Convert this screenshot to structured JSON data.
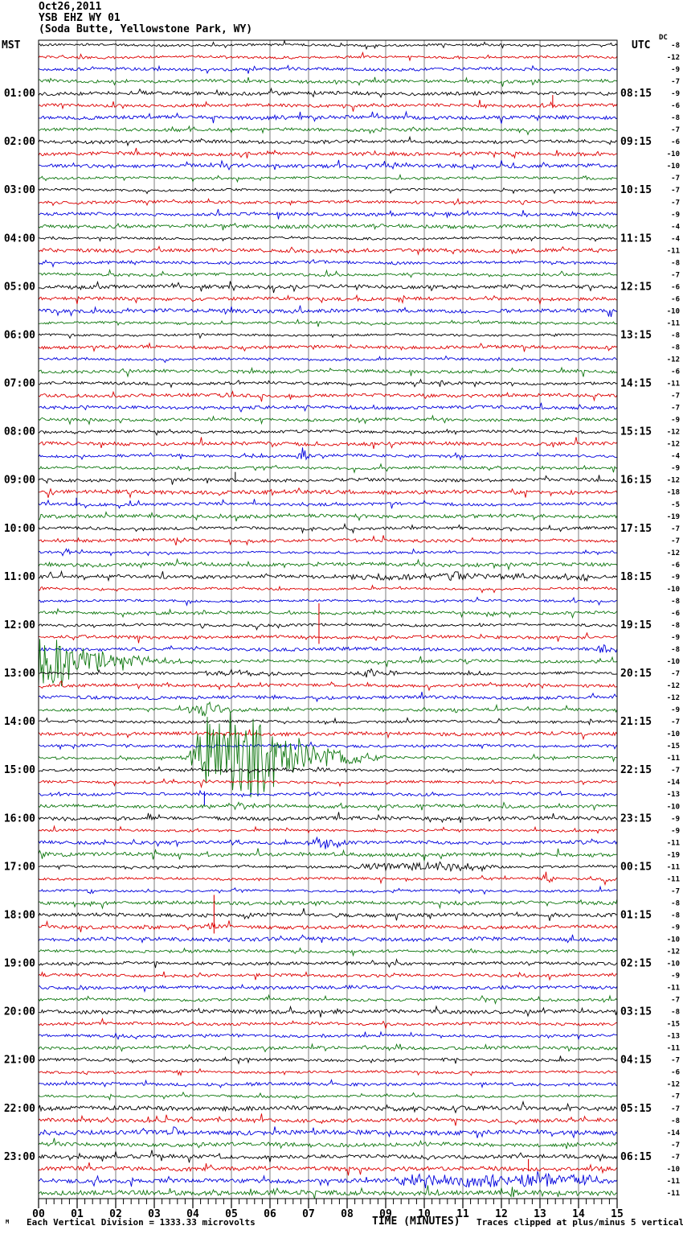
{
  "header": {
    "date": "Oct26,2011",
    "station": "YSB EHZ WY 01",
    "location": "(Soda Butte, Yellowstone Park, WY)"
  },
  "axes": {
    "left_timezone": "MST",
    "right_timezone": "UTC",
    "dc_label": "DC",
    "xlabel": "TIME (MINUTES)",
    "x_ticks": [
      "00",
      "01",
      "02",
      "03",
      "04",
      "05",
      "06",
      "07",
      "08",
      "09",
      "10",
      "11",
      "12",
      "13",
      "14",
      "15"
    ],
    "footer_left": "Each Vertical Division = 1333.33 microvolts",
    "footer_right": "Traces clipped at plus/minus 5 vertical divisions",
    "corner_mark": "M"
  },
  "chart_data": {
    "type": "line",
    "subtype": "helicorder-seismogram",
    "title": "YSB EHZ WY 01 (Soda Butte, Yellowstone Park, WY) Oct26,2011",
    "xlabel": "TIME (MINUTES)",
    "x_range_minutes": [
      0,
      15
    ],
    "rows": 96,
    "minutes_per_row": 15,
    "row_color_cycle": [
      "#000000",
      "#dd0000",
      "#0000dd",
      "#0f770f"
    ],
    "grid_color": "#7e7e7e",
    "grid": true,
    "clip_divisions": 5,
    "microvolts_per_division": 1333.33,
    "left_label_rows_step": 4,
    "left_labels": [
      "01:00",
      "02:00",
      "03:00",
      "04:00",
      "05:00",
      "06:00",
      "07:00",
      "08:00",
      "09:00",
      "10:00",
      "11:00",
      "12:00",
      "13:00",
      "14:00",
      "15:00",
      "16:00",
      "17:00",
      "18:00",
      "19:00",
      "20:00",
      "21:00",
      "22:00",
      "23:00"
    ],
    "right_labels": [
      "08:15",
      "09:15",
      "10:15",
      "11:15",
      "12:15",
      "13:15",
      "14:15",
      "15:15",
      "16:15",
      "17:15",
      "18:15",
      "19:15",
      "20:15",
      "21:15",
      "22:15",
      "23:15",
      "00:15",
      "01:15",
      "02:15",
      "03:15",
      "04:15",
      "05:15",
      "06:15"
    ],
    "dc_offsets": [
      -8,
      -12,
      -9,
      -7,
      -9,
      -6,
      -8,
      -7,
      -6,
      -10,
      -10,
      -7,
      -7,
      -7,
      -9,
      -4,
      -4,
      -11,
      -8,
      -7,
      -6,
      -6,
      -10,
      -11,
      -8,
      -8,
      -12,
      -6,
      -11,
      -7,
      -7,
      -9,
      -12,
      -12,
      -4,
      -9,
      -12,
      -18,
      -5,
      -19,
      -7,
      -7,
      -12,
      -6,
      -9,
      -10,
      -8,
      -6,
      -8,
      -9,
      -8,
      -10,
      -7,
      -12,
      -12,
      -9,
      -7,
      -10,
      -15,
      -11,
      -7,
      -14,
      -13,
      -10,
      -9,
      -9,
      -11,
      -19,
      -11,
      -11,
      -7,
      -8,
      -8,
      -9,
      -10,
      -12,
      -10,
      -9,
      -11,
      -7,
      -8,
      -15,
      -13,
      -11,
      -7,
      -6,
      -12,
      -7,
      -7,
      -8,
      -14,
      -7,
      -7,
      -10,
      -11,
      -11
    ],
    "events": [
      {
        "row": 5,
        "type": "spike",
        "m0": 13.33,
        "amp": 13
      },
      {
        "row": 28,
        "type": "burst",
        "m0": 10.25,
        "m1": 11.3,
        "amp": 4
      },
      {
        "row": 31,
        "type": "burst",
        "m0": 12.5,
        "m1": 13.6,
        "amp": 4
      },
      {
        "row": 34,
        "type": "burst",
        "m0": 6.6,
        "m1": 7.45,
        "amp": 12
      },
      {
        "row": 36,
        "type": "spike",
        "m0": 5.1,
        "amp": 10
      },
      {
        "row": 37,
        "type": "burst",
        "m0": 5.8,
        "m1": 6.7,
        "amp": 5
      },
      {
        "row": 37,
        "type": "burst",
        "m0": 12.2,
        "m1": 12.8,
        "amp": 5
      },
      {
        "row": 38,
        "type": "spike",
        "m0": 0.98,
        "amp": 8
      },
      {
        "row": 39,
        "type": "decay",
        "m0": 0,
        "m1": 1.4,
        "amp": 7
      },
      {
        "row": 41,
        "type": "burst",
        "m0": 3.4,
        "m1": 4.0,
        "amp": 6
      },
      {
        "row": 42,
        "type": "burst",
        "m0": 0.5,
        "m1": 1.25,
        "amp": 7
      },
      {
        "row": 44,
        "type": "sustained",
        "m0": 7.5,
        "m1": 15,
        "amp": 4
      },
      {
        "row": 44,
        "type": "burst",
        "m0": 10.5,
        "m1": 11.6,
        "amp": 8
      },
      {
        "row": 45,
        "type": "decay",
        "m0": 0,
        "m1": 0.6,
        "amp": 7
      },
      {
        "row": 47,
        "type": "burst",
        "m0": 3.7,
        "m1": 5.35,
        "amp": 5
      },
      {
        "row": 47,
        "type": "burst",
        "m0": 11.0,
        "m1": 12.45,
        "amp": 5
      },
      {
        "row": 48,
        "type": "burst",
        "m0": 3.9,
        "m1": 5.25,
        "amp": 4
      },
      {
        "row": 48,
        "type": "burst",
        "m0": 11.1,
        "m1": 12.35,
        "amp": 4
      },
      {
        "row": 49,
        "type": "pulse",
        "m0": 7.27,
        "amp": 42
      },
      {
        "row": 50,
        "type": "burst",
        "m0": 14.4,
        "m1": 15,
        "amp": 11
      },
      {
        "row": 51,
        "type": "decay",
        "m0": 0,
        "m1": 5.4,
        "amp": 55
      },
      {
        "row": 52,
        "type": "sustained",
        "m0": 4.2,
        "m1": 6.3,
        "amp": 4
      },
      {
        "row": 52,
        "type": "burst",
        "m0": 8.0,
        "m1": 10.3,
        "amp": 7
      },
      {
        "row": 55,
        "type": "burst",
        "m0": 3.75,
        "m1": 5.7,
        "amp": 13
      },
      {
        "row": 59,
        "type": "quake",
        "m0": 3.6,
        "m1": 9.0,
        "amp": 60
      },
      {
        "row": 60,
        "type": "sustained",
        "m0": 3.6,
        "m1": 7.8,
        "amp": 3
      },
      {
        "row": 61,
        "type": "burst",
        "m0": 4.1,
        "m1": 4.65,
        "amp": 10
      },
      {
        "row": 62,
        "type": "spike",
        "m0": 4.3,
        "amp": -14
      },
      {
        "row": 63,
        "type": "burst",
        "m0": 5.0,
        "m1": 6.1,
        "amp": 8
      },
      {
        "row": 66,
        "type": "burst",
        "m0": 4.85,
        "m1": 5.75,
        "amp": 5
      },
      {
        "row": 66,
        "type": "burst",
        "m0": 6.9,
        "m1": 8.6,
        "amp": 11
      },
      {
        "row": 67,
        "type": "decay",
        "m0": 0,
        "m1": 1.7,
        "amp": 6
      },
      {
        "row": 68,
        "type": "sustained",
        "m0": 8.0,
        "m1": 11.9,
        "amp": 7
      },
      {
        "row": 69,
        "type": "burst",
        "m0": 13.0,
        "m1": 13.6,
        "amp": 10
      },
      {
        "row": 69,
        "type": "burst",
        "m0": 14.55,
        "m1": 15,
        "amp": 10
      },
      {
        "row": 70,
        "type": "burst",
        "m0": 1.1,
        "m1": 1.9,
        "amp": 5
      },
      {
        "row": 73,
        "type": "burst",
        "m0": 4.3,
        "m1": 4.95,
        "amp": 9
      },
      {
        "row": 73,
        "type": "pulse",
        "m0": 4.55,
        "amp": 40
      },
      {
        "row": 90,
        "type": "burst",
        "m0": 3.4,
        "m1": 4.05,
        "amp": 8
      },
      {
        "row": 93,
        "type": "spike",
        "m0": 12.7,
        "amp": 12
      },
      {
        "row": 94,
        "type": "sustained",
        "m0": 9.0,
        "m1": 15,
        "amp": 11
      },
      {
        "row": 94,
        "type": "burst",
        "m0": 12.6,
        "m1": 13.7,
        "amp": 17
      },
      {
        "row": 95,
        "type": "burst",
        "m0": 10.15,
        "m1": 10.8,
        "amp": 4
      },
      {
        "row": 95,
        "type": "burst",
        "m0": 12.1,
        "m1": 12.8,
        "amp": 7
      }
    ]
  }
}
